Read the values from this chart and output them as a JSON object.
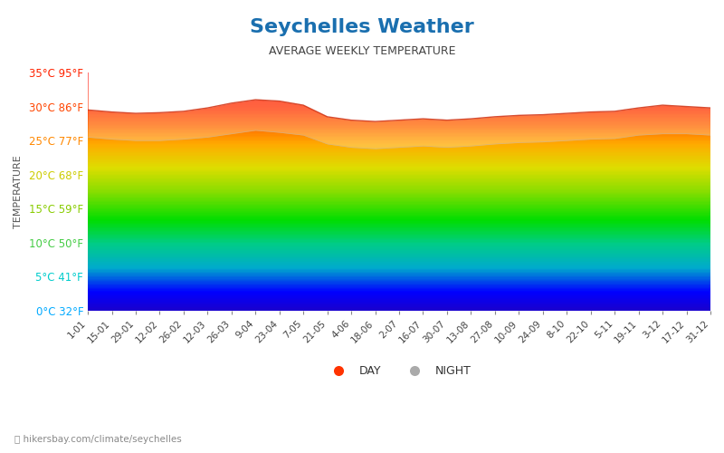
{
  "title": "Seychelles Weather",
  "subtitle": "AVERAGE WEEKLY TEMPERATURE",
  "ylabel": "TEMPERATURE",
  "url_text": "hikersbay.com/climate/seychelles",
  "yticks_celsius": [
    0,
    5,
    10,
    15,
    20,
    25,
    30,
    35
  ],
  "yticks_fahrenheit": [
    32,
    41,
    50,
    59,
    68,
    77,
    86,
    95
  ],
  "ylim": [
    0,
    35
  ],
  "xtick_labels": [
    "1-01",
    "15-01",
    "29-01",
    "12-02",
    "26-02",
    "12-03",
    "26-03",
    "9-04",
    "23-04",
    "7-05",
    "21-05",
    "4-06",
    "18-06",
    "2-07",
    "16-07",
    "30-07",
    "13-08",
    "27-08",
    "10-09",
    "24-09",
    "8-10",
    "22-10",
    "5-11",
    "19-11",
    "3-12",
    "17-12",
    "31-12"
  ],
  "day_color": "#FF3300",
  "night_color": "#C8C8C8",
  "title_color": "#1a6faf",
  "subtitle_color": "#444444",
  "ytick_color_warm": "#FF4500",
  "ytick_color_cool": "#00BFFF",
  "grid_color": "#cccccc",
  "day_temps": [
    29.5,
    29.2,
    29.0,
    29.1,
    29.3,
    29.8,
    30.5,
    31.0,
    30.8,
    30.2,
    28.5,
    28.0,
    27.8,
    28.0,
    28.2,
    28.0,
    28.2,
    28.5,
    28.7,
    28.8,
    29.0,
    29.2,
    29.3,
    29.8,
    30.2,
    30.0,
    29.8
  ],
  "night_temps": [
    25.5,
    25.2,
    25.0,
    25.0,
    25.2,
    25.5,
    26.0,
    26.5,
    26.2,
    25.8,
    24.5,
    24.0,
    23.8,
    24.0,
    24.2,
    24.0,
    24.2,
    24.5,
    24.7,
    24.8,
    25.0,
    25.2,
    25.3,
    25.8,
    26.0,
    26.0,
    25.8
  ]
}
